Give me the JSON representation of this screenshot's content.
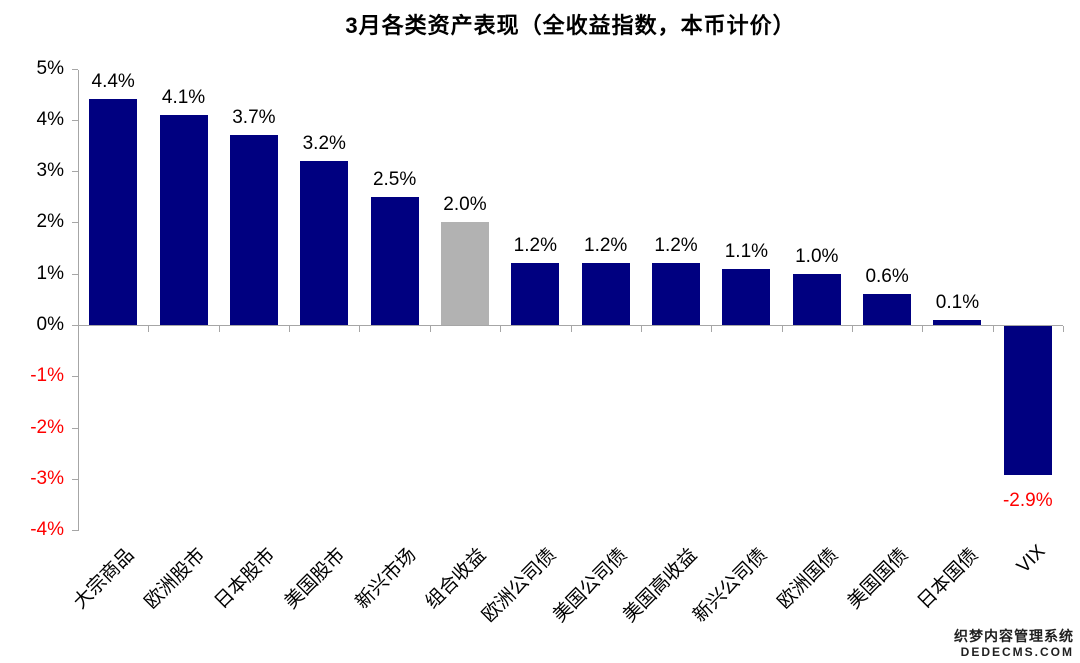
{
  "page": {
    "title": "3月各类资产表现（全收益指数，本币计价）"
  },
  "watermark": {
    "line1": "织梦内容管理系统",
    "line2": "DEDECMS.COM"
  },
  "chart_data": {
    "type": "bar",
    "title": "3月各类资产表现（全收益指数，本币计价）",
    "categories": [
      "大宗商品",
      "欧洲股市",
      "日本股市",
      "美国股市",
      "新兴市场",
      "组合收益",
      "欧洲公司债",
      "美国公司债",
      "美国高收益",
      "新兴公司债",
      "欧洲国债",
      "美国国债",
      "日本国债",
      "VIX"
    ],
    "values": [
      4.4,
      4.1,
      3.7,
      3.2,
      2.5,
      2.0,
      1.2,
      1.2,
      1.2,
      1.1,
      1.0,
      0.6,
      0.1,
      -2.9
    ],
    "value_labels": [
      "4.4%",
      "4.1%",
      "3.7%",
      "3.2%",
      "2.5%",
      "2.0%",
      "1.2%",
      "1.2%",
      "1.2%",
      "1.1%",
      "1.0%",
      "0.6%",
      "0.1%",
      "-2.9%"
    ],
    "highlight_index": 5,
    "xlabel": "",
    "ylabel": "",
    "grid": false,
    "legend": "none",
    "y_axis": {
      "min": -4,
      "max": 5,
      "step": 1,
      "tick_labels": [
        "5%",
        "4%",
        "3%",
        "2%",
        "1%",
        "0%",
        "-1%",
        "-2%",
        "-3%",
        "-4%"
      ]
    },
    "colors": {
      "bar": "#000080",
      "highlight_bar": "#b2b2b2",
      "positive_label": "#000000",
      "negative_label": "#ff0000",
      "ytick_positive": "#000000",
      "ytick_negative": "#ff0000",
      "axis": "#a6a6a6"
    }
  }
}
